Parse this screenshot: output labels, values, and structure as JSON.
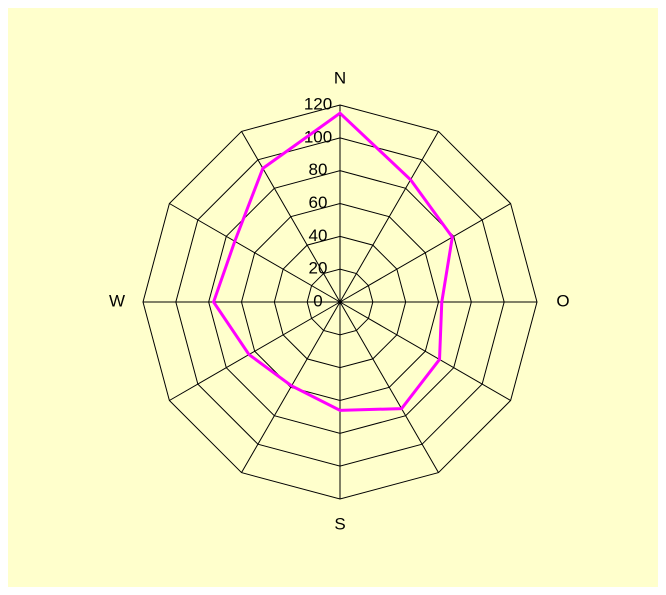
{
  "chart_data": {
    "type": "radar",
    "categories": [
      "N",
      null,
      null,
      "O",
      null,
      null,
      "S",
      null,
      null,
      "W",
      null,
      null
    ],
    "series": [
      {
        "color": "#ff00ff",
        "values": [
          115,
          86,
          79,
          62,
          70,
          75,
          66,
          59,
          64,
          77,
          74,
          94
        ]
      }
    ],
    "ylim": [
      0,
      120
    ],
    "yticks": [
      0,
      20,
      40,
      60,
      80,
      100,
      120
    ],
    "grid": true
  }
}
